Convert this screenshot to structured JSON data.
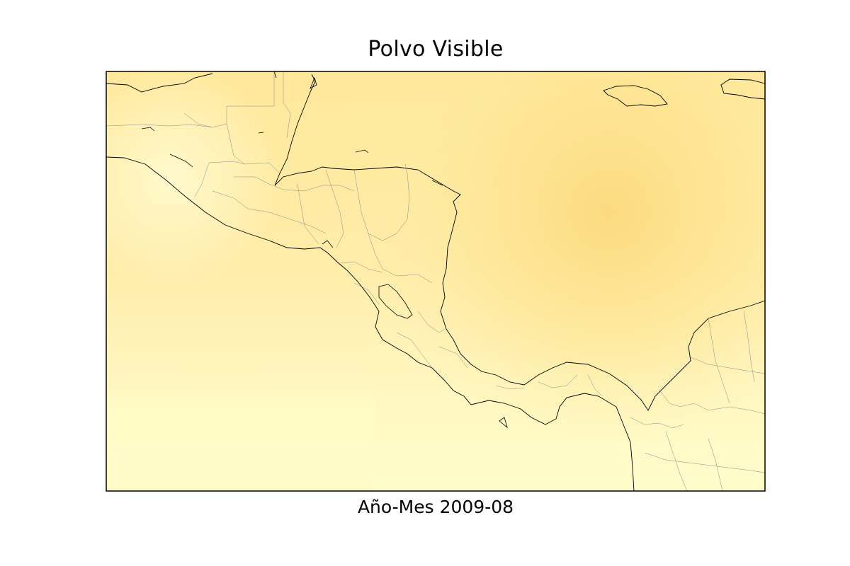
{
  "figure": {
    "title": "Polvo Visible",
    "xlabel": "Año-Mes 2009-08"
  },
  "colors": {
    "dust_light": "#fffdcf",
    "dust_mid": "#ffeea6",
    "dust_dark": "#fde08a",
    "coastline": "#000000",
    "admin_boundary": "#8a8a8a",
    "frame": "#000000"
  }
}
